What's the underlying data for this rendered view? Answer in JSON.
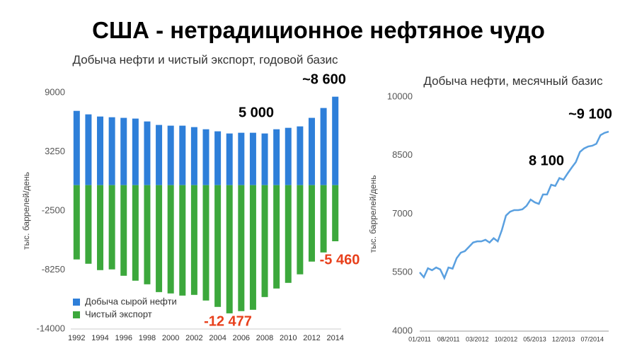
{
  "title": "США - нетрадиционное нефтяное чудо",
  "chart_data": [
    {
      "type": "bar",
      "title": "Добыча нефти и чистый экспорт, годовой базис",
      "ylabel": "тыс. баррелей/день",
      "categories": [
        "1992",
        null,
        "1994",
        null,
        "1996",
        null,
        "1998",
        null,
        "2000",
        null,
        "2002",
        null,
        "2004",
        null,
        "2006",
        null,
        "2008",
        null,
        "2010",
        null,
        "2012",
        null,
        "2014"
      ],
      "series": [
        {
          "name": "Добыча сырой нефти",
          "color": "#2e7fd9",
          "values": [
            7230,
            6890,
            6680,
            6610,
            6550,
            6480,
            6200,
            5860,
            5790,
            5790,
            5650,
            5440,
            5240,
            5030,
            5100,
            5100,
            5030,
            5440,
            5580,
            5720,
            6550,
            7510,
            8610
          ]
        },
        {
          "name": "Чистый экспорт",
          "color": "#3ca83c",
          "values": [
            -7230,
            -7650,
            -8270,
            -8200,
            -8820,
            -9300,
            -9650,
            -10410,
            -10540,
            -10750,
            -10680,
            -11230,
            -11850,
            -12477,
            -12260,
            -12130,
            -10890,
            -10060,
            -9510,
            -8680,
            -7440,
            -6550,
            -5460
          ]
        }
      ],
      "ylim": [
        -14000,
        9000
      ],
      "yticks": [
        -14000,
        -8250,
        -2500,
        3250,
        9000
      ],
      "legend": "lower left",
      "annotations": [
        {
          "text": "~8 600",
          "color": "#000000"
        },
        {
          "text": "5 000",
          "color": "#000000"
        },
        {
          "text": "-12 477",
          "color": "#e8401c"
        },
        {
          "text": "-5 460",
          "color": "#e8401c"
        }
      ]
    },
    {
      "type": "line",
      "title": "Добыча нефти, месячный базис",
      "ylabel": "тыс. баррелей/день",
      "categories": [
        "01/2011",
        null,
        null,
        null,
        null,
        null,
        null,
        "08/2011",
        null,
        null,
        null,
        null,
        null,
        null,
        "03/2012",
        null,
        null,
        null,
        null,
        null,
        null,
        "10/2012",
        null,
        null,
        null,
        null,
        null,
        null,
        "05/2013",
        null,
        null,
        null,
        null,
        null,
        null,
        "12/2013",
        null,
        null,
        null,
        null,
        null,
        null,
        "07/2014",
        null,
        null,
        null,
        null
      ],
      "series": [
        {
          "name": "Добыча нефти",
          "color": "#5aa0e0",
          "values": [
            5505,
            5380,
            5610,
            5560,
            5630,
            5580,
            5360,
            5630,
            5600,
            5870,
            6010,
            6050,
            6160,
            6270,
            6300,
            6300,
            6340,
            6270,
            6380,
            6300,
            6590,
            6960,
            7060,
            7100,
            7100,
            7120,
            7210,
            7370,
            7300,
            7260,
            7500,
            7500,
            7750,
            7720,
            7920,
            7880,
            8040,
            8190,
            8330,
            8590,
            8680,
            8730,
            8750,
            8800,
            9020,
            9080,
            9110
          ]
        }
      ],
      "ylim": [
        4000,
        10000
      ],
      "yticks": [
        4000,
        5500,
        7000,
        8500,
        10000
      ],
      "annotations": [
        {
          "text": "8 100",
          "color": "#000000"
        },
        {
          "text": "~9 100",
          "color": "#000000"
        }
      ]
    }
  ]
}
